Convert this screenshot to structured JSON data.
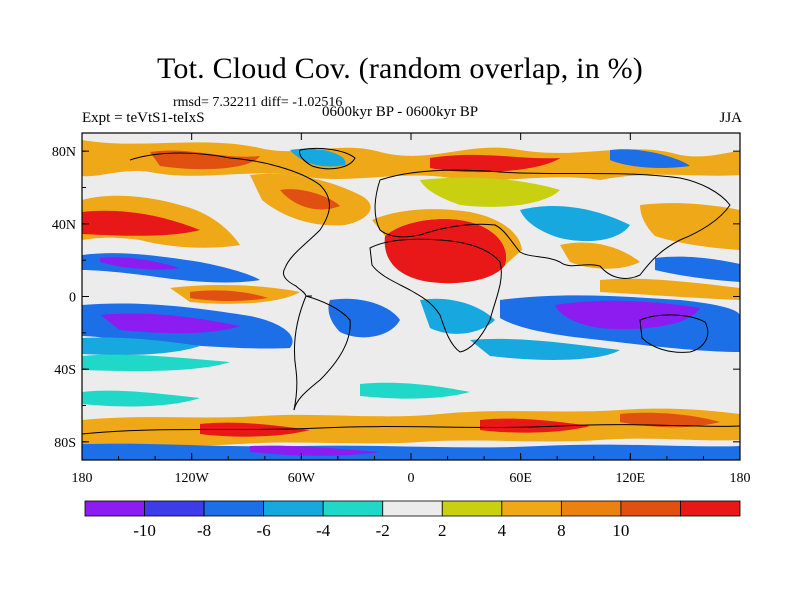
{
  "header": {
    "title": "Tot. Cloud Cov. (random overlap, in %)",
    "stats": "rmsd= 7.32211 diff= -1.02516",
    "experiment": "Expt = teVtS1-teIxS",
    "period": "0600kyr BP - 0600kyr BP",
    "season": "JJA"
  },
  "map": {
    "x_ticks": [
      {
        "lon": -180,
        "label": "180"
      },
      {
        "lon": -120,
        "label": "120W"
      },
      {
        "lon": -60,
        "label": "60W"
      },
      {
        "lon": 0,
        "label": "0"
      },
      {
        "lon": 60,
        "label": "60E"
      },
      {
        "lon": 120,
        "label": "120E"
      },
      {
        "lon": 180,
        "label": "180"
      }
    ],
    "y_ticks": [
      {
        "lat": 80,
        "label": "80N"
      },
      {
        "lat": 40,
        "label": "40N"
      },
      {
        "lat": 0,
        "label": "0"
      },
      {
        "lat": -40,
        "label": "40S"
      },
      {
        "lat": -80,
        "label": "80S"
      }
    ],
    "lat_range": [
      -90,
      90
    ],
    "lon_range": [
      -180,
      180
    ]
  },
  "colorbar": {
    "colors": [
      "#8c1cf0",
      "#3e3be8",
      "#1c6fe6",
      "#18a8e0",
      "#20d8c8",
      "#ececec",
      "#c8d010",
      "#eea818",
      "#ec8010",
      "#e05010",
      "#e81818"
    ],
    "labels": [
      "-10",
      "-8",
      "-6",
      "-4",
      "-2",
      "2",
      "4",
      "8",
      "10"
    ]
  }
}
